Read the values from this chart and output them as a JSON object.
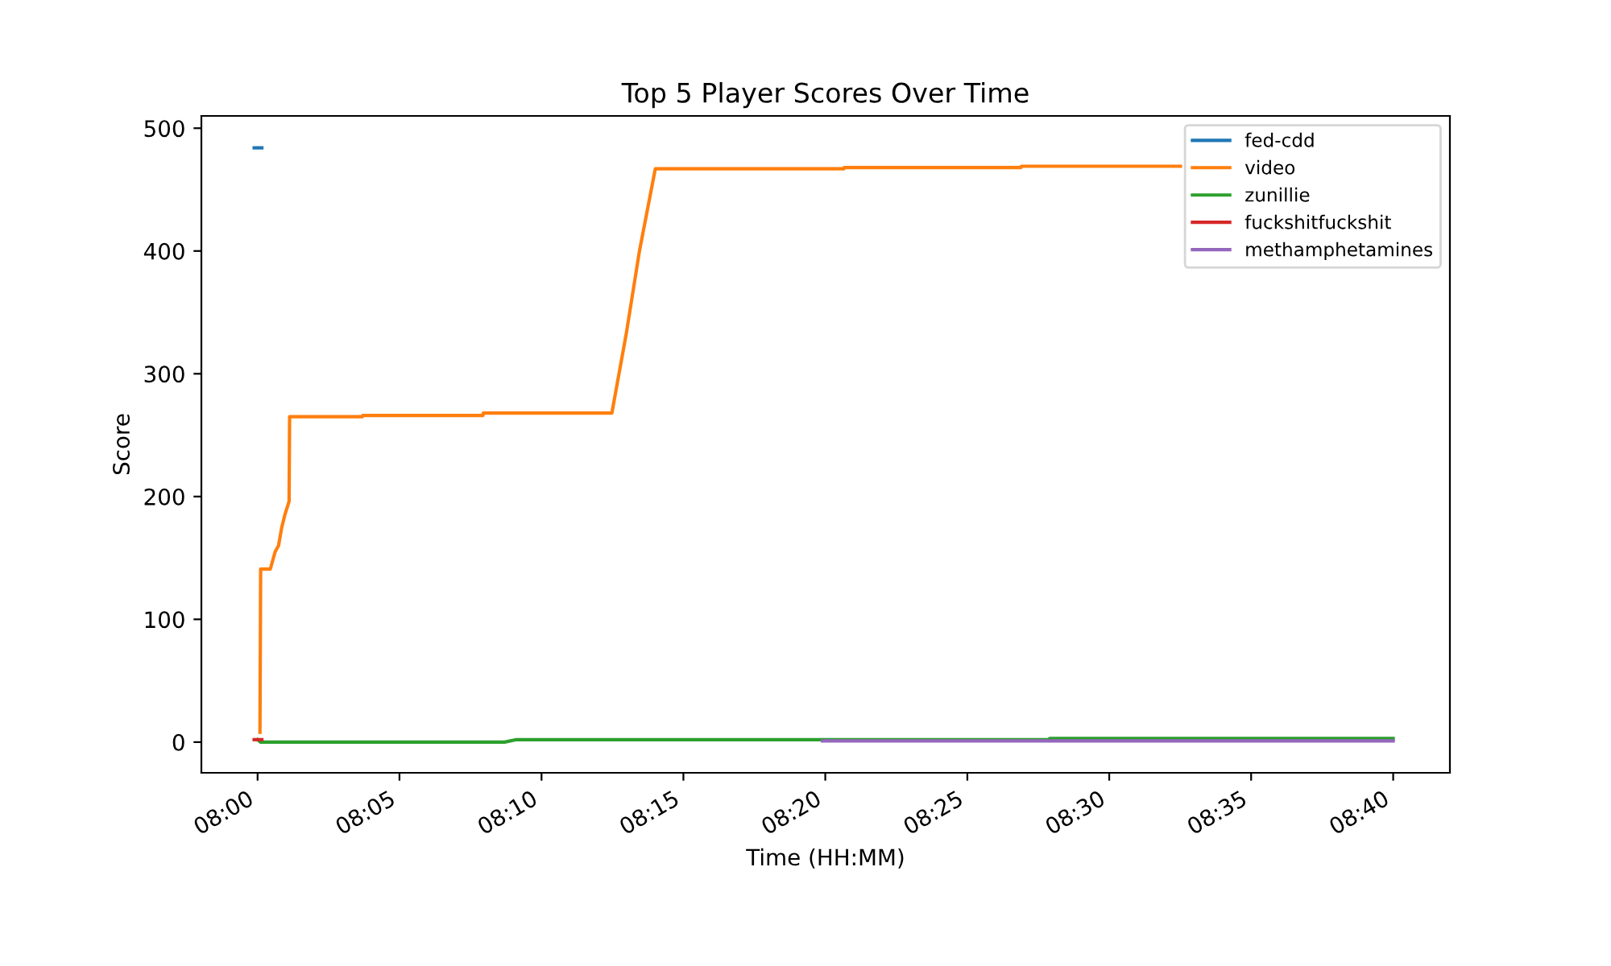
{
  "chart_data": {
    "type": "line",
    "title": "Top 5 Player Scores Over Time",
    "xlabel": "Time (HH:MM)",
    "ylabel": "Score",
    "xlim": [
      7.967,
      8.7
    ],
    "xticks": [
      {
        "value": 8.0,
        "label": "08:00"
      },
      {
        "value": 8.0833,
        "label": "08:05"
      },
      {
        "value": 8.1667,
        "label": "08:10"
      },
      {
        "value": 8.25,
        "label": "08:15"
      },
      {
        "value": 8.3333,
        "label": "08:20"
      },
      {
        "value": 8.4167,
        "label": "08:25"
      },
      {
        "value": 8.5,
        "label": "08:30"
      },
      {
        "value": 8.5833,
        "label": "08:35"
      },
      {
        "value": 8.6667,
        "label": "08:40"
      }
    ],
    "ylim": [
      -25,
      510
    ],
    "yticks": [
      0,
      100,
      200,
      300,
      400,
      500
    ],
    "grid": false,
    "legend": "top right",
    "line_style": "solid",
    "marker": "none",
    "series": [
      {
        "name": "fed-cdd",
        "color": "#1f77b4",
        "x": [
          7.998,
          8.0025
        ],
        "values": [
          484,
          484
        ]
      },
      {
        "name": "video",
        "color": "#ff7f0e",
        "x": [
          8.0014,
          8.0018,
          8.0075,
          8.0103,
          8.0123,
          8.0142,
          8.016,
          8.0185,
          8.0188,
          8.0615,
          8.0617,
          8.1323,
          8.1325,
          8.208,
          8.2165,
          8.2242,
          8.2335,
          8.3442,
          8.3444,
          8.4482,
          8.4484,
          8.5418
        ],
        "values": [
          8,
          141,
          141,
          155,
          160,
          175,
          185,
          196,
          265,
          265,
          266,
          266,
          268,
          268,
          333,
          400,
          467,
          467,
          468,
          468,
          469,
          469
        ]
      },
      {
        "name": "zunillie",
        "color": "#2ca02c",
        "x": [
          8.0,
          8.0017,
          8.145,
          8.152,
          8.4648,
          8.465,
          8.6667
        ],
        "values": [
          2,
          0,
          0,
          2,
          2,
          3,
          3
        ]
      },
      {
        "name": "fuckshitfuckshit",
        "color": "#d62728",
        "x": [
          7.998,
          8.0025
        ],
        "values": [
          2,
          2
        ]
      },
      {
        "name": "methamphetamines",
        "color": "#9467bd",
        "x": [
          8.3317,
          8.6667
        ],
        "values": [
          1,
          1
        ]
      }
    ]
  }
}
